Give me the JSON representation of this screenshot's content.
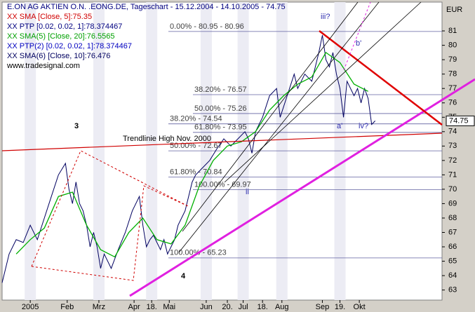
{
  "chart_data": {
    "type": "line",
    "title": "E.ON AG AKTIEN O.N. .EONG.DE, Tageschart - 15.12.2004 - 14.10.2005 - 74.75",
    "legend": [
      {
        "text": "XX SMA [Close, 5]:75.35",
        "color": "#d00000"
      },
      {
        "text": "XX PTP [0.02, 0.02, 1]:78.374467",
        "color": "#000080"
      },
      {
        "text": "XX SMA(5) [Close, 20]:76.5565",
        "color": "#00a000"
      },
      {
        "text": "XX PTP(2) [0.02, 0.02, 1]:78.374467",
        "color": "#0000c0"
      },
      {
        "text": "XX SMA(6) [Close, 10]:76.476",
        "color": "#000060"
      },
      {
        "text": "www.tradesignal.com",
        "color": "#000000"
      }
    ],
    "y_axis_label": "EUR",
    "ylim": [
      62.3,
      83
    ],
    "yticks": [
      63,
      64,
      65,
      66,
      67,
      68,
      69,
      70,
      71,
      72,
      73,
      74,
      75,
      76,
      77,
      78,
      79,
      80,
      81
    ],
    "xlim": [
      0,
      250
    ],
    "xticks": [
      {
        "value": 16,
        "label": "2005"
      },
      {
        "value": 37,
        "label": "Feb"
      },
      {
        "value": 55,
        "label": "Mrz"
      },
      {
        "value": 75,
        "label": "Apr"
      },
      {
        "value": 85,
        "label": "18."
      },
      {
        "value": 95,
        "label": "Mai"
      },
      {
        "value": 116,
        "label": "Jun"
      },
      {
        "value": 128,
        "label": "20."
      },
      {
        "value": 137,
        "label": "Jul"
      },
      {
        "value": 148,
        "label": "18."
      },
      {
        "value": 159,
        "label": "Aug"
      },
      {
        "value": 182,
        "label": "Sep"
      },
      {
        "value": 192,
        "label": "19."
      },
      {
        "value": 203,
        "label": "Okt"
      }
    ],
    "series": [
      {
        "color": "#000060",
        "x": [
          0,
          4,
          8,
          12,
          16,
          20,
          24,
          28,
          32,
          36,
          38,
          40,
          42,
          44,
          46,
          48,
          50,
          52,
          54,
          56,
          58,
          62,
          66,
          70,
          74,
          78,
          80,
          82,
          84,
          86,
          88,
          90,
          92,
          94,
          96,
          98,
          100,
          104,
          108,
          110,
          114,
          118,
          122,
          126,
          130,
          134,
          138,
          140,
          142,
          144,
          148,
          152,
          156,
          158,
          162,
          166,
          168,
          172,
          176,
          180,
          182,
          184,
          186,
          188,
          190,
          192,
          194,
          196,
          198,
          200,
          202,
          204,
          206,
          208,
          210,
          212
        ],
        "values": [
          63.5,
          65.5,
          66.5,
          66.3,
          67.5,
          66.5,
          68,
          69.5,
          71,
          71.8,
          70,
          69,
          70.5,
          69,
          68.5,
          67.5,
          66,
          67,
          66,
          64.5,
          65.5,
          64.5,
          65.8,
          67,
          68.5,
          69.5,
          67.5,
          66,
          66.5,
          66.8,
          66.3,
          65.8,
          66.5,
          65.5,
          66,
          66.5,
          67.5,
          68.5,
          70.5,
          71,
          71.5,
          72,
          72.8,
          73.5,
          73,
          73.5,
          74,
          73.5,
          72.5,
          74,
          75,
          76.5,
          77,
          75,
          76.5,
          78,
          77,
          78,
          77.5,
          79.5,
          80.7,
          79,
          78.5,
          79.5,
          78,
          77,
          75,
          77.5,
          77,
          76.5,
          77,
          76,
          77,
          76.3,
          74.5,
          74.75
        ]
      },
      {
        "color": "#00b000",
        "x": [
          8,
          16,
          24,
          32,
          40,
          48,
          56,
          64,
          72,
          80,
          88,
          96,
          104,
          112,
          120,
          128,
          136,
          144,
          152,
          160,
          168,
          176,
          184,
          192,
          200,
          208
        ],
        "values": [
          65.5,
          66.5,
          67.3,
          69.5,
          69.8,
          67.5,
          65.8,
          65.3,
          67,
          68,
          66.5,
          66.2,
          67.5,
          70.2,
          72,
          73,
          73.3,
          74,
          75.5,
          76.5,
          77.3,
          77.8,
          79.5,
          78.8,
          77.3,
          76.8
        ]
      }
    ],
    "last_price": 74.75,
    "levels": [
      {
        "label": "0.00% - 80.95 - 80.96",
        "value": 80.96
      },
      {
        "label": "38.20% - 76.57",
        "value": 76.57
      },
      {
        "label": "50.00% - 75.26",
        "value": 75.26
      },
      {
        "label": "38.20% - 74.54",
        "value": 74.54
      },
      {
        "label": "61.80% - 73.95",
        "value": 73.95
      },
      {
        "label": "50.00% - 72.67",
        "value": 72.67
      },
      {
        "label": "61.80% - 70.84",
        "value": 70.84
      },
      {
        "label": "100.00% - 69.97",
        "value": 69.97
      },
      {
        "label": "100.00% - 65.23",
        "value": 65.23
      }
    ],
    "annotations": {
      "wave3": "3",
      "wave4": "4",
      "trendline": "Trendlinie High Nov. 2000",
      "iii": "iii?",
      "b": "b'",
      "a": "a'",
      "iv": "iv?",
      "ii": "ii"
    }
  }
}
